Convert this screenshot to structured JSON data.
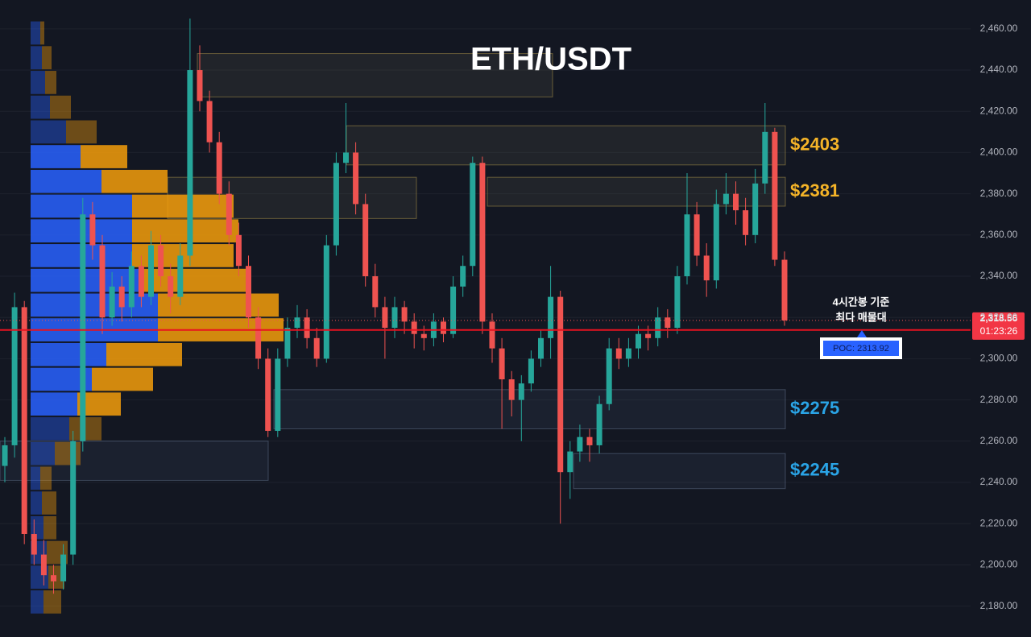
{
  "chart_data": {
    "type": "candlestick",
    "title": "ETH/USDT",
    "ylim": [
      2165,
      2474
    ],
    "yticks": [
      {
        "value": 2180,
        "label": "2,180.00"
      },
      {
        "value": 2200,
        "label": "2,200.00"
      },
      {
        "value": 2220,
        "label": "2,220.00"
      },
      {
        "value": 2240,
        "label": "2,240.00"
      },
      {
        "value": 2260,
        "label": "2,260.00"
      },
      {
        "value": 2280,
        "label": "2,280.00"
      },
      {
        "value": 2300,
        "label": "2,300.00"
      },
      {
        "value": 2320,
        "label": "2,320.00"
      },
      {
        "value": 2340,
        "label": "2,340.00"
      },
      {
        "value": 2360,
        "label": "2,360.00"
      },
      {
        "value": 2380,
        "label": "2,380.00"
      },
      {
        "value": 2400,
        "label": "2,400.00"
      },
      {
        "value": 2420,
        "label": "2,420.00"
      },
      {
        "value": 2440,
        "label": "2,440.00"
      },
      {
        "value": 2460,
        "label": "2,460.00"
      }
    ],
    "grid": true,
    "up_color": "#26a69a",
    "down_color": "#ef5350",
    "candles": [
      [
        2248,
        2262,
        2240,
        2258
      ],
      [
        2258,
        2332,
        2252,
        2325
      ],
      [
        2325,
        2328,
        2210,
        2215
      ],
      [
        2215,
        2222,
        2200,
        2205
      ],
      [
        2205,
        2212,
        2190,
        2195
      ],
      [
        2195,
        2200,
        2186,
        2192
      ],
      [
        2192,
        2210,
        2188,
        2205
      ],
      [
        2205,
        2265,
        2200,
        2260
      ],
      [
        2260,
        2378,
        2255,
        2370
      ],
      [
        2370,
        2376,
        2348,
        2355
      ],
      [
        2355,
        2360,
        2312,
        2320
      ],
      [
        2320,
        2342,
        2316,
        2335
      ],
      [
        2335,
        2340,
        2318,
        2325
      ],
      [
        2325,
        2352,
        2320,
        2345
      ],
      [
        2345,
        2350,
        2325,
        2330
      ],
      [
        2330,
        2362,
        2326,
        2355
      ],
      [
        2355,
        2360,
        2335,
        2340
      ],
      [
        2340,
        2346,
        2322,
        2330
      ],
      [
        2330,
        2356,
        2326,
        2350
      ],
      [
        2350,
        2465,
        2345,
        2440
      ],
      [
        2440,
        2452,
        2420,
        2425
      ],
      [
        2425,
        2430,
        2400,
        2405
      ],
      [
        2405,
        2410,
        2375,
        2380
      ],
      [
        2380,
        2386,
        2355,
        2360
      ],
      [
        2360,
        2366,
        2340,
        2345
      ],
      [
        2345,
        2350,
        2315,
        2320
      ],
      [
        2320,
        2325,
        2295,
        2300
      ],
      [
        2300,
        2305,
        2262,
        2265
      ],
      [
        2265,
        2305,
        2262,
        2300
      ],
      [
        2300,
        2320,
        2296,
        2315
      ],
      [
        2315,
        2326,
        2310,
        2320
      ],
      [
        2320,
        2324,
        2305,
        2310
      ],
      [
        2310,
        2315,
        2296,
        2300
      ],
      [
        2300,
        2360,
        2298,
        2355
      ],
      [
        2355,
        2400,
        2350,
        2395
      ],
      [
        2395,
        2424,
        2390,
        2400
      ],
      [
        2400,
        2405,
        2370,
        2375
      ],
      [
        2375,
        2380,
        2335,
        2340
      ],
      [
        2340,
        2346,
        2320,
        2325
      ],
      [
        2325,
        2330,
        2300,
        2315
      ],
      [
        2315,
        2330,
        2310,
        2325
      ],
      [
        2325,
        2328,
        2312,
        2318
      ],
      [
        2318,
        2322,
        2305,
        2312
      ],
      [
        2312,
        2316,
        2304,
        2310
      ],
      [
        2310,
        2322,
        2306,
        2318
      ],
      [
        2318,
        2320,
        2308,
        2312
      ],
      [
        2312,
        2340,
        2310,
        2335
      ],
      [
        2335,
        2350,
        2330,
        2345
      ],
      [
        2345,
        2398,
        2340,
        2395
      ],
      [
        2395,
        2398,
        2312,
        2318
      ],
      [
        2318,
        2322,
        2298,
        2305
      ],
      [
        2305,
        2310,
        2266,
        2290
      ],
      [
        2290,
        2294,
        2272,
        2280
      ],
      [
        2280,
        2292,
        2260,
        2288
      ],
      [
        2288,
        2304,
        2284,
        2300
      ],
      [
        2300,
        2314,
        2296,
        2310
      ],
      [
        2310,
        2345,
        2300,
        2330
      ],
      [
        2330,
        2333,
        2220,
        2245
      ],
      [
        2245,
        2260,
        2232,
        2255
      ],
      [
        2255,
        2268,
        2250,
        2262
      ],
      [
        2262,
        2266,
        2250,
        2258
      ],
      [
        2258,
        2282,
        2254,
        2278
      ],
      [
        2278,
        2310,
        2275,
        2305
      ],
      [
        2305,
        2310,
        2295,
        2300
      ],
      [
        2300,
        2310,
        2296,
        2305
      ],
      [
        2305,
        2316,
        2300,
        2312
      ],
      [
        2312,
        2316,
        2304,
        2310
      ],
      [
        2310,
        2325,
        2306,
        2320
      ],
      [
        2320,
        2324,
        2310,
        2315
      ],
      [
        2315,
        2345,
        2312,
        2340
      ],
      [
        2340,
        2390,
        2336,
        2370
      ],
      [
        2370,
        2376,
        2345,
        2350
      ],
      [
        2350,
        2356,
        2330,
        2338
      ],
      [
        2338,
        2382,
        2334,
        2375
      ],
      [
        2375,
        2390,
        2370,
        2380
      ],
      [
        2380,
        2386,
        2365,
        2372
      ],
      [
        2372,
        2378,
        2355,
        2360
      ],
      [
        2360,
        2392,
        2356,
        2385
      ],
      [
        2385,
        2424,
        2380,
        2410
      ],
      [
        2410,
        2412,
        2345,
        2348
      ],
      [
        2348,
        2352,
        2316,
        2318.56
      ]
    ],
    "volume_profile": {
      "bins": [
        2464,
        2452,
        2440,
        2428,
        2416,
        2404,
        2392,
        2380,
        2368,
        2356,
        2344,
        2332,
        2320,
        2308,
        2296,
        2284,
        2272,
        2260,
        2248,
        2236,
        2224,
        2212,
        2200,
        2188,
        2176
      ],
      "buy": [
        12,
        14,
        18,
        24,
        44,
        62,
        88,
        126,
        126,
        126,
        140,
        158,
        158,
        94,
        76,
        58,
        48,
        30,
        12,
        14,
        16,
        20,
        22,
        16
      ],
      "sell": [
        5,
        12,
        14,
        26,
        38,
        58,
        82,
        126,
        132,
        126,
        128,
        150,
        156,
        94,
        76,
        54,
        40,
        32,
        14,
        18,
        16,
        26,
        20,
        22
      ],
      "buy_color": "#2962ff",
      "sell_color": "#f59d0b"
    },
    "zones": [
      {
        "range": [
          2427,
          2448
        ]
      },
      {
        "range": [
          2394,
          2413
        ],
        "label": "$2403",
        "color": "#f5b428"
      },
      {
        "range": [
          2368,
          2388
        ]
      },
      {
        "range": [
          2374,
          2388
        ],
        "label": "$2381",
        "color": "#f5b428"
      },
      {
        "range": [
          2266,
          2285
        ],
        "label": "$2275",
        "color": "#2aa4e6"
      },
      {
        "range": [
          2241,
          2260
        ]
      },
      {
        "range": [
          2237,
          2254
        ],
        "label": "$2245",
        "color": "#2aa4e6"
      }
    ],
    "poc": {
      "value": 2313.92,
      "label": "POC: 2313.92",
      "color": "#e8121f"
    },
    "poc_note": [
      "4시간봉 기준",
      "최다 매물대"
    ],
    "last_price": {
      "value": 2318.56,
      "label": "2,318.56"
    },
    "countdown": "01:23:26"
  }
}
